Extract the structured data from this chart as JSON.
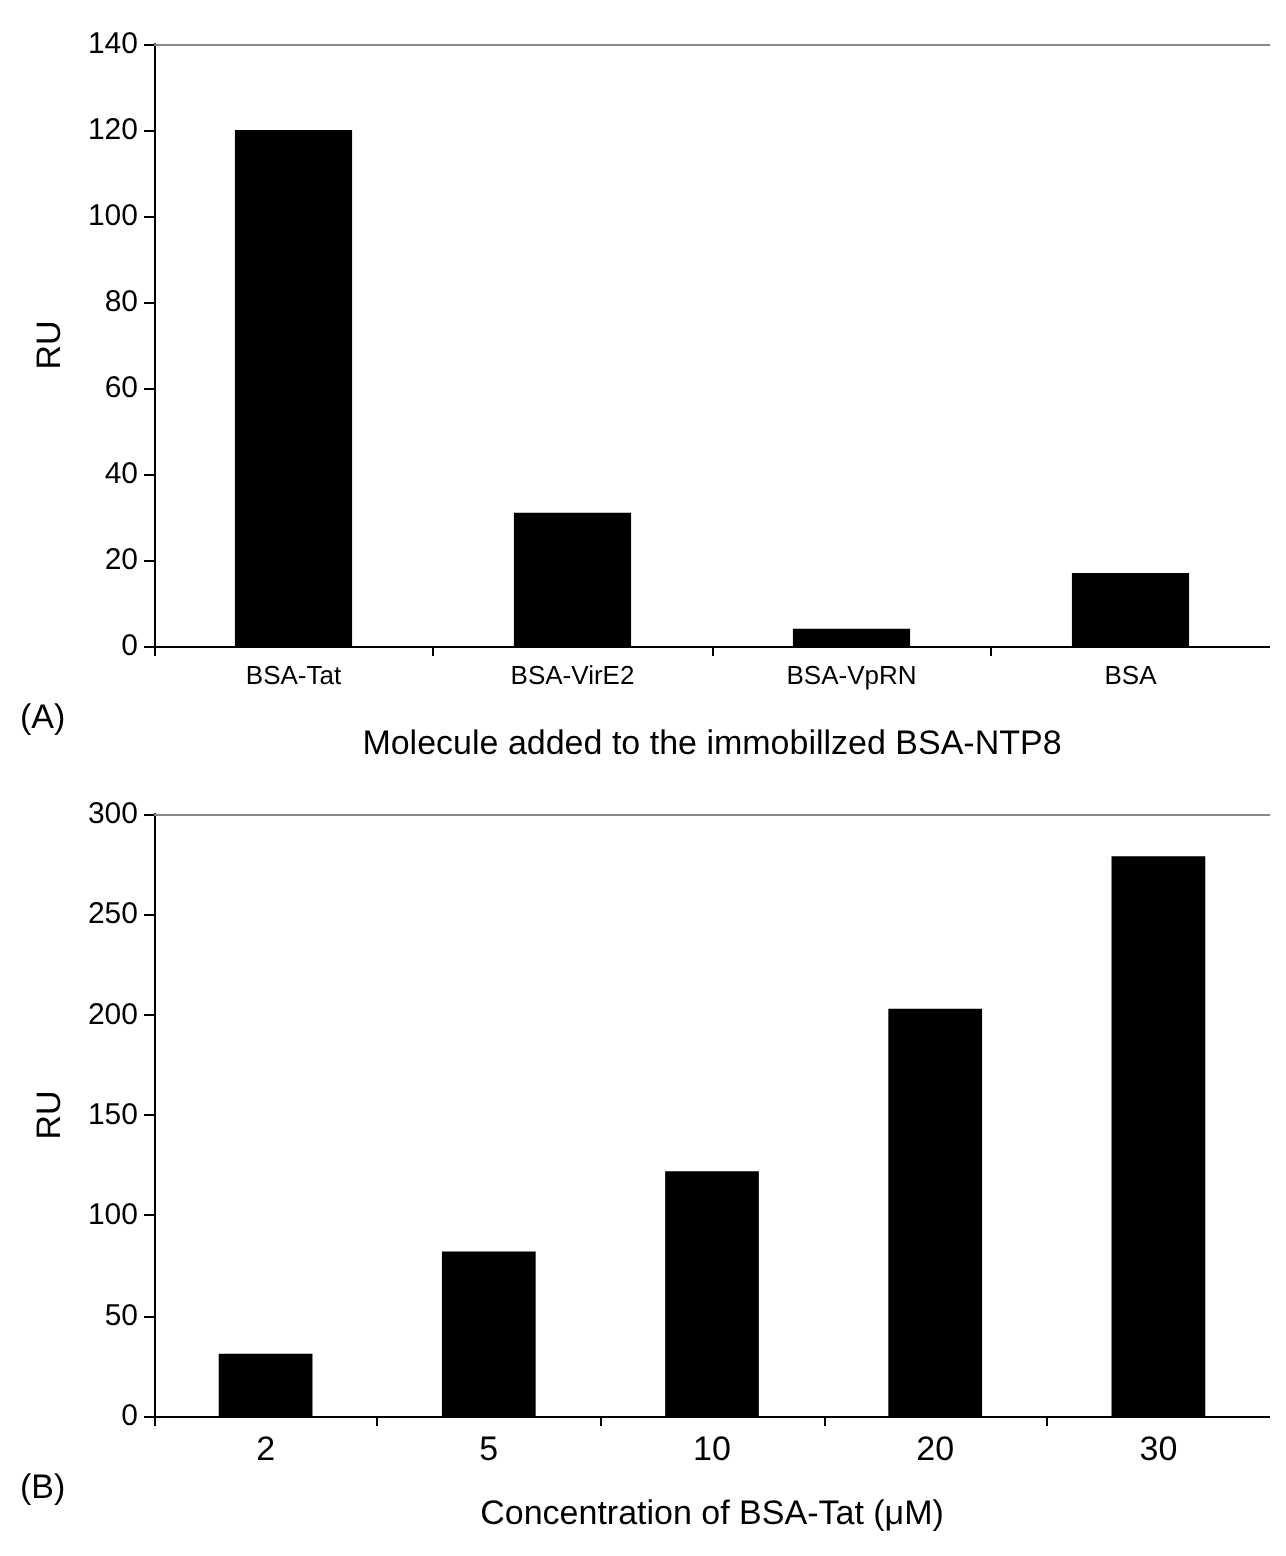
{
  "chart_data": [
    {
      "type": "bar",
      "ylabel": "RU",
      "xlabel": "Molecule added to the immobillzed BSA-NTP8",
      "annotations": [
        "(A)"
      ],
      "categories": [
        "BSA-Tat",
        "BSA-VirE2",
        "BSA-VpRN",
        "BSA"
      ],
      "values": [
        120,
        31,
        4,
        17
      ],
      "color": "#000000",
      "ylim": [
        0,
        140
      ],
      "yticks": [
        0,
        20,
        40,
        60,
        80,
        100,
        120,
        140
      ],
      "grid": false
    },
    {
      "type": "bar",
      "ylabel": "RU",
      "xlabel": "Concentration of BSA-Tat (μM)",
      "annotations": [
        "(B)"
      ],
      "categories": [
        "2",
        "5",
        "10",
        "20",
        "30"
      ],
      "values": [
        31,
        82,
        122,
        203,
        279
      ],
      "color": "#000000",
      "ylim": [
        0,
        300
      ],
      "yticks": [
        0,
        50,
        100,
        150,
        200,
        250,
        300
      ],
      "grid": false
    }
  ]
}
